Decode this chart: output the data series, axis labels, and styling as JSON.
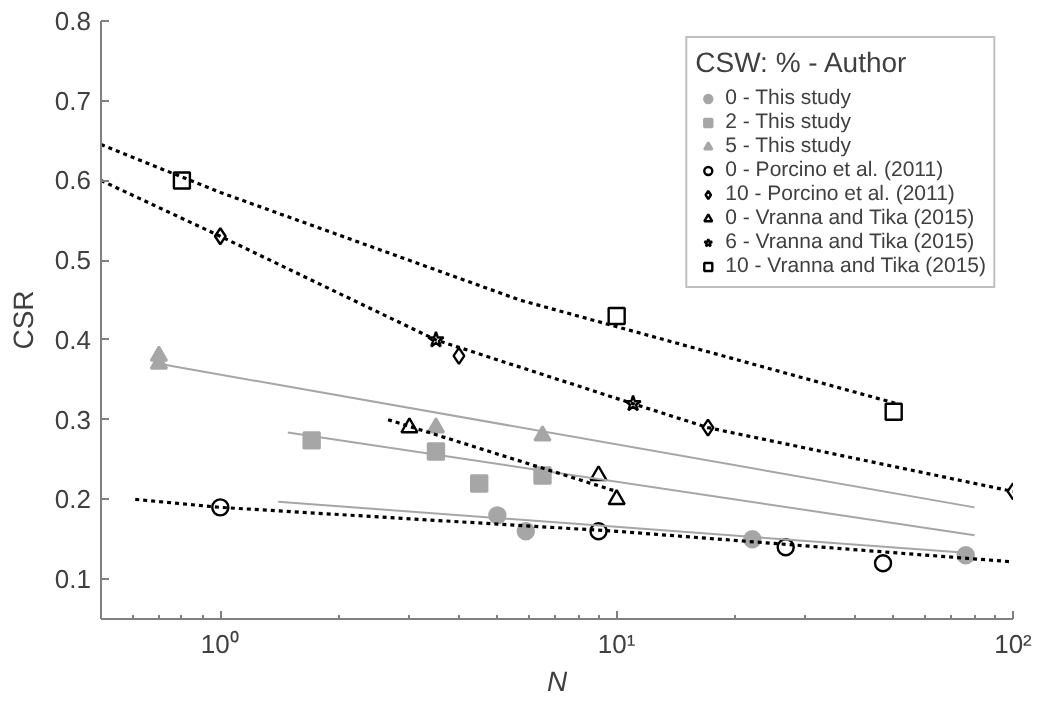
{
  "chart_data": {
    "type": "scatter",
    "xlabel": "N",
    "ylabel": "CSR",
    "legend_title": "CSW: % - Author",
    "log": "x",
    "xlim": [
      0.5,
      100
    ],
    "ylim": [
      0.05,
      0.8
    ],
    "xticks": [
      {
        "value": 1,
        "label": "10⁰"
      },
      {
        "value": 10,
        "label": "10¹"
      },
      {
        "value": 100,
        "label": "10²"
      }
    ],
    "yticks": [
      0.1,
      0.2,
      0.3,
      0.4,
      0.5,
      0.6,
      0.7,
      0.8
    ],
    "grid": false,
    "legend": "top right",
    "series": [
      {
        "name": "0 - This study",
        "color": "#a6a6a6",
        "marker": "circle",
        "x": [
          5.0,
          5.9,
          22,
          76
        ],
        "values": [
          0.18,
          0.16,
          0.15,
          0.13
        ]
      },
      {
        "name": "2 - This study",
        "color": "#a6a6a6",
        "marker": "square",
        "x": [
          1.7,
          3.5,
          4.5,
          6.5
        ],
        "values": [
          0.274,
          0.26,
          0.22,
          0.23
        ]
      },
      {
        "name": "5 - This study",
        "color": "#a6a6a6",
        "marker": "triangle",
        "x": [
          0.7,
          0.7,
          3.5,
          6.5
        ],
        "values": [
          0.38,
          0.37,
          0.29,
          0.28
        ]
      },
      {
        "name": "0 - Porcino et al. (2011)",
        "color": "#000000",
        "marker": "circle",
        "x": [
          1,
          9,
          26.7,
          47
        ],
        "values": [
          0.19,
          0.16,
          0.14,
          0.12
        ]
      },
      {
        "name": "10 - Porcino et al. (2011)",
        "color": "#000000",
        "marker": "diamond",
        "x": [
          1,
          4.0,
          17,
          100
        ],
        "values": [
          0.53,
          0.38,
          0.29,
          0.21
        ]
      },
      {
        "name": "0 - Vranna and Tika (2015)",
        "color": "#000000",
        "marker": "triangle",
        "x": [
          3.0,
          9,
          10
        ],
        "values": [
          0.29,
          0.23,
          0.2
        ]
      },
      {
        "name": "6 - Vranna and Tika (2015)",
        "color": "#000000",
        "marker": "star",
        "x": [
          3.5,
          11
        ],
        "values": [
          0.4,
          0.32
        ]
      },
      {
        "name": "10 - Vranna and Tika (2015)",
        "color": "#000000",
        "marker": "square",
        "x": [
          0.8,
          10,
          50
        ],
        "values": [
          0.6,
          0.43,
          0.31
        ]
      },
      {
        "type": "line",
        "color": "#a6a6a6",
        "line_style": "solid",
        "x": [
          1.4,
          76
        ],
        "values": [
          0.197,
          0.133
        ]
      },
      {
        "type": "line",
        "color": "#a6a6a6",
        "line_style": "solid",
        "x": [
          1.48,
          80
        ],
        "values": [
          0.284,
          0.155
        ]
      },
      {
        "type": "line",
        "color": "#a6a6a6",
        "line_style": "solid",
        "x": [
          0.7,
          80
        ],
        "values": [
          0.37,
          0.19
        ]
      },
      {
        "type": "line",
        "color": "#000000",
        "line_style": "dotted",
        "x": [
          0.61,
          1,
          10,
          98
        ],
        "values": [
          0.2,
          0.19,
          0.16,
          0.122
        ]
      },
      {
        "type": "line",
        "color": "#000000",
        "line_style": "dotted",
        "x": [
          0.5,
          1,
          3.5,
          11,
          17,
          100
        ],
        "values": [
          0.6,
          0.53,
          0.4,
          0.32,
          0.29,
          0.21
        ]
      },
      {
        "type": "line",
        "color": "#000000",
        "line_style": "dotted",
        "x": [
          2.65,
          10
        ],
        "values": [
          0.3,
          0.21
        ]
      },
      {
        "type": "line",
        "color": "#000000",
        "line_style": "dotted",
        "x": [
          0.5,
          1,
          5.7,
          51
        ],
        "values": [
          0.645,
          0.585,
          0.45,
          0.32
        ]
      }
    ]
  }
}
